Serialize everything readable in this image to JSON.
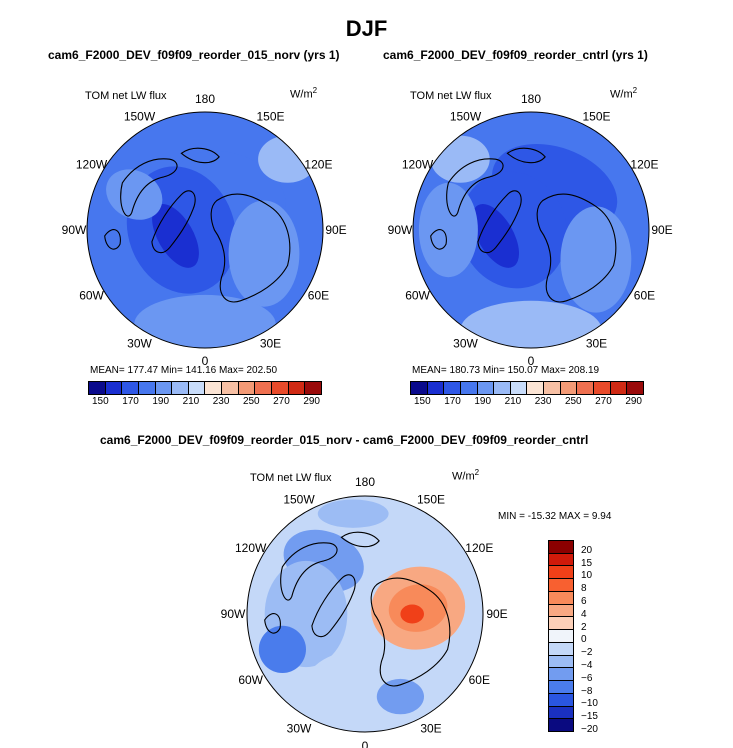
{
  "page_title": "DJF",
  "variable": "TOM net LW flux",
  "units": "W/m",
  "units_exp": "2",
  "lon_labels": [
    "180",
    "150E",
    "120E",
    "90E",
    "60E",
    "30E",
    "0",
    "30W",
    "60W",
    "90W",
    "120W",
    "150W"
  ],
  "panel1": {
    "title": "cam6_F2000_DEV_f09f09_reorder_015_norv (yrs 1)",
    "stats": "MEAN= 177.47   Min= 141.16   Max= 202.50",
    "colorbar_ticks": [
      "150",
      "170",
      "190",
      "210",
      "230",
      "250",
      "270",
      "290"
    ]
  },
  "panel2": {
    "title": "cam6_F2000_DEV_f09f09_reorder_cntrl (yrs 1)",
    "stats": "MEAN= 180.73   Min= 150.07   Max= 208.19",
    "colorbar_ticks": [
      "150",
      "170",
      "190",
      "210",
      "230",
      "250",
      "270",
      "290"
    ]
  },
  "panel3": {
    "title": "cam6_F2000_DEV_f09f09_reorder_015_norv - cam6_F2000_DEV_f09f09_reorder_cntrl",
    "stats": "MIN = -15.32  MAX =    9.94",
    "colorbar_ticks": [
      "20",
      "15",
      "10",
      "8",
      "6",
      "4",
      "2",
      "0",
      "−2",
      "−4",
      "−6",
      "−8",
      "−10",
      "−15",
      "−20"
    ]
  },
  "colors": {
    "abs_scale": [
      "#0a0a8c",
      "#1a2fd1",
      "#2e57e6",
      "#4777ee",
      "#6b97f2",
      "#9abaf6",
      "#c8dcfa",
      "#fbe4d4",
      "#f7c0a4",
      "#f39a76",
      "#ef7050",
      "#e84a2a",
      "#d02a14",
      "#9a0a0a"
    ],
    "diff_scale": [
      "#8b0000",
      "#d01a0a",
      "#f04018",
      "#f86030",
      "#f88a5a",
      "#f8a882",
      "#fcd0b8",
      "#f0f4fa",
      "#c4d8f8",
      "#9cbcf4",
      "#729cf0",
      "#4a7cec",
      "#2a56e0",
      "#1a30c0",
      "#0a0a80"
    ]
  }
}
